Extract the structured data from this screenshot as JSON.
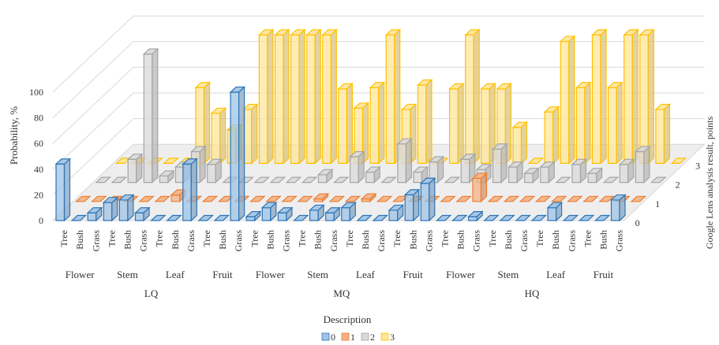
{
  "chart_data": {
    "type": "bar",
    "variant": "3d-clustered-depth",
    "title": "",
    "xlabel": "Description",
    "ylabel": "Probability, %",
    "zlabel": "Google Lens analysis result, points",
    "ylim": [
      0,
      100
    ],
    "yticks": [
      "0",
      "20",
      "40",
      "60",
      "80",
      "100"
    ],
    "zticks": [
      "0",
      "1",
      "2",
      "3"
    ],
    "grid": true,
    "legend_position": "bottom",
    "groups": [
      {
        "name": "LQ",
        "parts": [
          "Flower",
          "Stem",
          "Leaf",
          "Fruit"
        ]
      },
      {
        "name": "MQ",
        "parts": [
          "Flower",
          "Stem",
          "Leaf",
          "Fruit"
        ]
      },
      {
        "name": "HQ",
        "parts": [
          "Flower",
          "Stem",
          "Leaf",
          "Fruit"
        ]
      }
    ],
    "subcategories": [
      "Tree",
      "Bush",
      "Grass"
    ],
    "series": [
      {
        "name": "0",
        "color": "#9DC3E6",
        "edge": "#2E75B6",
        "values": [
          44,
          0,
          6,
          14,
          16,
          6,
          0,
          0,
          44,
          0,
          0,
          100,
          3,
          10,
          6,
          0,
          8,
          6,
          10,
          0,
          0,
          8,
          20,
          29,
          0,
          0,
          3,
          0,
          0,
          0,
          0,
          10,
          0,
          0,
          0,
          16
        ]
      },
      {
        "name": "1",
        "color": "#F4B183",
        "edge": "#ED7D31",
        "values": [
          0,
          0,
          0,
          0,
          0,
          0,
          5,
          0,
          0,
          0,
          0,
          0,
          0,
          0,
          0,
          2,
          0,
          0,
          2,
          0,
          0,
          0,
          0,
          0,
          0,
          18,
          0,
          0,
          0,
          0,
          0,
          0,
          0,
          0,
          0,
          0
        ]
      },
      {
        "name": "2",
        "color": "#D9D9D9",
        "edge": "#A5A5A5",
        "values": [
          0,
          0,
          18,
          100,
          5,
          12,
          24,
          14,
          0,
          0,
          0,
          0,
          0,
          0,
          6,
          0,
          20,
          8,
          0,
          30,
          8,
          16,
          0,
          18,
          10,
          26,
          12,
          7,
          12,
          0,
          14,
          7,
          0,
          14,
          24,
          0
        ]
      },
      {
        "name": "3",
        "color": "#FFE699",
        "edge": "#FFC000",
        "values": [
          0,
          0,
          0,
          0,
          0,
          59,
          39,
          26,
          42,
          100,
          100,
          100,
          100,
          100,
          58,
          43,
          59,
          100,
          42,
          61,
          0,
          58,
          100,
          58,
          58,
          28,
          0,
          40,
          95,
          59,
          100,
          59,
          100,
          100,
          42,
          0
        ]
      }
    ]
  }
}
